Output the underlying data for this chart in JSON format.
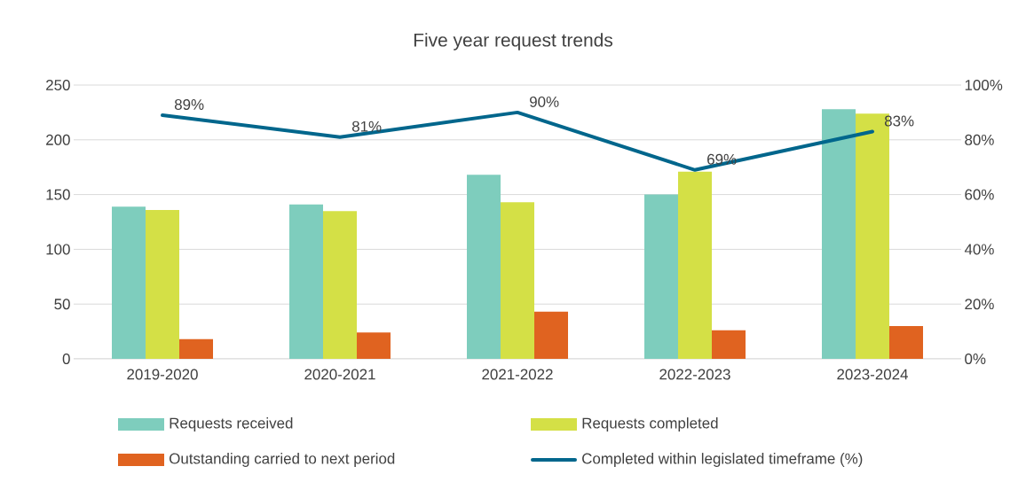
{
  "chart_data": {
    "type": "bar",
    "title": "Five year request trends",
    "categories": [
      "2019-2020",
      "2020-2021",
      "2021-2022",
      "2022-2023",
      "2023-2024"
    ],
    "series": [
      {
        "name": "Requests received",
        "color": "#7ecdbd",
        "values": [
          139,
          141,
          168,
          150,
          228
        ]
      },
      {
        "name": "Requests completed",
        "color": "#d4e046",
        "values": [
          136,
          135,
          143,
          171,
          224
        ]
      },
      {
        "name": "Outstanding carried to next period",
        "color": "#e06320",
        "values": [
          18,
          24,
          43,
          26,
          30
        ]
      },
      {
        "name": "Completed within legislated timeframe (%)",
        "type": "line",
        "axis": "y2",
        "color": "#00668c",
        "values": [
          89,
          81,
          90,
          69,
          83
        ],
        "value_labels": [
          "89%",
          "81%",
          "90%",
          "69%",
          "83%"
        ]
      }
    ],
    "ylim": [
      0,
      250
    ],
    "yticks": [
      0,
      50,
      100,
      150,
      200,
      250
    ],
    "y2lim": [
      0,
      100
    ],
    "y2ticks": [
      {
        "value": 0,
        "label": "0%"
      },
      {
        "value": 20,
        "label": "20%"
      },
      {
        "value": 40,
        "label": "40%"
      },
      {
        "value": 60,
        "label": "60%"
      },
      {
        "value": 80,
        "label": "80%"
      },
      {
        "value": 100,
        "label": "100%"
      }
    ],
    "grid": "y",
    "legend": "bottom"
  }
}
